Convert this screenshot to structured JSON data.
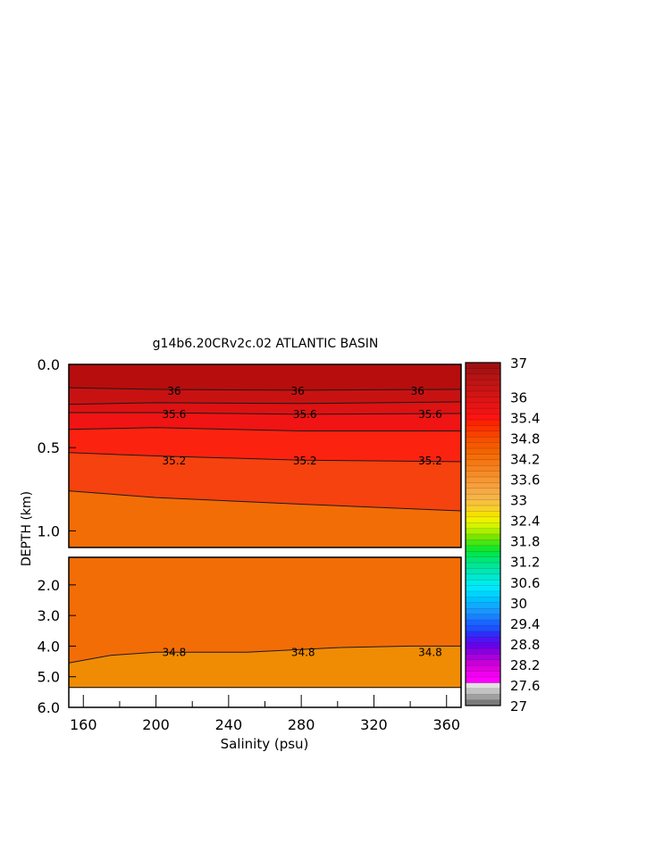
{
  "chart_data": {
    "type": "heatmap",
    "title": "g14b6.20CRv2c.02 ATLANTIC BASIN",
    "xlabel": "Salinity (psu)",
    "ylabel": "DEPTH (km)",
    "xlim": [
      152,
      368
    ],
    "x_ticks": [
      "160",
      "200",
      "240",
      "280",
      "320",
      "360"
    ],
    "x_tick_values": [
      160,
      200,
      240,
      280,
      320,
      360
    ],
    "upper_panel": {
      "ylim": [
        0.0,
        1.1
      ],
      "y_ticks": [
        "0.0",
        "0.5",
        "1.0"
      ],
      "y_tick_values": [
        0.0,
        0.5,
        1.0
      ],
      "bands": [
        {
          "value": "36.6",
          "color": "#b70d0d"
        },
        {
          "value": "36.2",
          "color": "#c81212"
        },
        {
          "value": "35.8",
          "color": "#dd1212"
        },
        {
          "value": "35.4",
          "color": "#f01414"
        },
        {
          "value": "35.2",
          "color": "#fb2310"
        },
        {
          "value": "35.0",
          "color": "#f6420e"
        },
        {
          "value": "34.8",
          "color": "#f36d07"
        }
      ],
      "contours": [
        {
          "label": "",
          "x": [
            152,
            200,
            280,
            368
          ],
          "y": [
            0.0,
            0.0,
            0.0,
            0.0
          ]
        },
        {
          "label": "36",
          "x": [
            152,
            200,
            280,
            368
          ],
          "y": [
            0.14,
            0.15,
            0.155,
            0.15
          ]
        },
        {
          "label": "",
          "x": [
            152,
            200,
            280,
            368
          ],
          "y": [
            0.24,
            0.23,
            0.235,
            0.225
          ]
        },
        {
          "label": "35.6",
          "x": [
            152,
            200,
            280,
            368
          ],
          "y": [
            0.29,
            0.29,
            0.3,
            0.295
          ]
        },
        {
          "label": "",
          "x": [
            152,
            200,
            280,
            368
          ],
          "y": [
            0.39,
            0.38,
            0.4,
            0.4
          ]
        },
        {
          "label": "35.2",
          "x": [
            152,
            200,
            280,
            368
          ],
          "y": [
            0.53,
            0.55,
            0.575,
            0.585
          ]
        },
        {
          "label": "",
          "x": [
            152,
            200,
            280,
            368
          ],
          "y": [
            0.76,
            0.8,
            0.84,
            0.88
          ]
        }
      ],
      "contour_labels": [
        {
          "text": "36",
          "x": [
            210,
            278,
            344
          ],
          "y": 0.155
        },
        {
          "text": "35.6",
          "x": [
            210,
            282,
            351
          ],
          "y": 0.295
        },
        {
          "text": "35.2",
          "x": [
            210,
            282,
            351
          ],
          "y": 0.575
        }
      ]
    },
    "lower_panel": {
      "ylim": [
        1.1,
        6.0
      ],
      "y_ticks": [
        "2.0",
        "3.0",
        "4.0",
        "5.0",
        "6.0"
      ],
      "y_tick_values": [
        2.0,
        3.0,
        4.0,
        5.0,
        6.0
      ],
      "data_bottom": 5.35,
      "bands": [
        {
          "value": "34.8",
          "color": "#f36d07"
        },
        {
          "value": "34.6",
          "color": "#f08c04"
        }
      ],
      "contours": [
        {
          "label": "34.8",
          "x": [
            152,
            175,
            200,
            250,
            300,
            340,
            368
          ],
          "y": [
            4.55,
            4.3,
            4.2,
            4.2,
            4.05,
            4.0,
            4.0
          ]
        }
      ],
      "contour_labels": [
        {
          "text": "34.8",
          "x": [
            210,
            281,
            351
          ],
          "y": 4.17
        }
      ]
    },
    "colorbar": {
      "labels": [
        "37",
        "36",
        "35.4",
        "34.8",
        "34.2",
        "33.6",
        "33",
        "32.4",
        "31.8",
        "31.2",
        "30.6",
        "30",
        "29.4",
        "28.8",
        "28.2",
        "27.6",
        "27"
      ],
      "label_values": [
        37,
        36,
        35.4,
        34.8,
        34.2,
        33.6,
        33,
        32.4,
        31.8,
        31.2,
        30.6,
        30,
        29.4,
        28.8,
        28.2,
        27.6,
        27
      ],
      "colors": [
        "#7a7a7a",
        "#a0a0a0",
        "#c2c2c2",
        "#e0e0e0",
        "#ff00ff",
        "#f000f0",
        "#e000e0",
        "#c800d8",
        "#aa00dd",
        "#8800e0",
        "#6a00ea",
        "#4e14f2",
        "#2e2ef8",
        "#1e50ff",
        "#1a64ff",
        "#1a80ff",
        "#1a96ff",
        "#10aaff",
        "#00c0ff",
        "#00d4ff",
        "#00e6ff",
        "#00ecec",
        "#00e8d0",
        "#00e6b4",
        "#00e696",
        "#00e678",
        "#00e650",
        "#14e628",
        "#46e614",
        "#78e600",
        "#aaf000",
        "#d2f500",
        "#f0f000",
        "#f5e100",
        "#f8d028",
        "#f7c23c",
        "#f5b446",
        "#f5aa46",
        "#f6a03c",
        "#f79632",
        "#f58c28",
        "#f5821e",
        "#f57814",
        "#f46e0a",
        "#f36400",
        "#f55a00",
        "#f65000",
        "#f84100",
        "#fa3200",
        "#fc2300",
        "#fd1414",
        "#f01414",
        "#e61414",
        "#dc1414",
        "#d21414",
        "#c81414",
        "#be1414",
        "#b41414",
        "#aa1212",
        "#a01010"
      ]
    }
  }
}
